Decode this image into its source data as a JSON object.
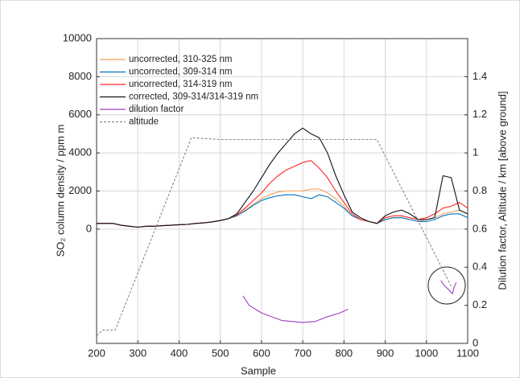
{
  "chart_data": {
    "type": "line",
    "x_label": "Sample",
    "y_label": "SO₂ column density / ppm m",
    "y2_label": "Dilution factor, Altitude / km [above ground]",
    "xlim": [
      200,
      1100
    ],
    "xticks": [
      200,
      300,
      400,
      500,
      600,
      700,
      800,
      900,
      1000,
      1100
    ],
    "ylim": [
      -6000,
      10000
    ],
    "yticks": [
      0,
      2000,
      4000,
      6000,
      8000,
      10000
    ],
    "y2lim": [
      0,
      1.6
    ],
    "y2ticks": [
      0,
      0.2,
      0.4,
      0.6,
      0.8,
      1,
      1.2,
      1.4
    ],
    "grid": true,
    "legend": "upper left",
    "series": [
      {
        "name": "uncorrected, 310-325 nm",
        "color": "#f5a05a",
        "x": [
          200,
          220,
          240,
          260,
          280,
          300,
          320,
          340,
          360,
          380,
          400,
          420,
          440,
          460,
          480,
          500,
          520,
          540,
          560,
          580,
          600,
          620,
          640,
          660,
          680,
          700,
          720,
          740,
          760,
          780,
          800,
          820,
          840,
          860,
          880,
          900,
          920,
          940,
          960,
          980,
          1000,
          1020,
          1040,
          1060,
          1080,
          1100
        ],
        "values": [
          300,
          300,
          300,
          200,
          150,
          100,
          150,
          150,
          180,
          200,
          230,
          250,
          300,
          330,
          380,
          450,
          550,
          700,
          1000,
          1300,
          1600,
          1800,
          1950,
          2000,
          2000,
          2000,
          2100,
          2100,
          1900,
          1600,
          1200,
          700,
          500,
          400,
          300,
          500,
          600,
          600,
          500,
          400,
          500,
          600,
          800,
          900,
          1000,
          800
        ]
      },
      {
        "name": "uncorrected, 309-314 nm",
        "color": "#0072bd",
        "x": [
          200,
          220,
          240,
          260,
          280,
          300,
          320,
          340,
          360,
          380,
          400,
          420,
          440,
          460,
          480,
          500,
          520,
          540,
          560,
          580,
          600,
          620,
          640,
          660,
          680,
          700,
          720,
          740,
          760,
          780,
          800,
          820,
          840,
          860,
          880,
          900,
          920,
          940,
          960,
          980,
          1000,
          1020,
          1040,
          1060,
          1080,
          1100
        ],
        "values": [
          300,
          300,
          300,
          200,
          150,
          100,
          150,
          150,
          180,
          200,
          230,
          250,
          300,
          330,
          380,
          450,
          550,
          700,
          950,
          1250,
          1500,
          1650,
          1750,
          1800,
          1800,
          1700,
          1600,
          1800,
          1700,
          1400,
          1100,
          700,
          500,
          400,
          300,
          500,
          600,
          600,
          500,
          400,
          400,
          500,
          700,
          800,
          800,
          600
        ]
      },
      {
        "name": "uncorrected, 314-319 nm",
        "color": "#ff2626",
        "x": [
          200,
          220,
          240,
          260,
          280,
          300,
          320,
          340,
          360,
          380,
          400,
          420,
          440,
          460,
          480,
          500,
          520,
          540,
          560,
          580,
          600,
          620,
          640,
          660,
          680,
          700,
          720,
          740,
          760,
          780,
          800,
          820,
          840,
          860,
          880,
          900,
          920,
          940,
          960,
          980,
          1000,
          1020,
          1040,
          1060,
          1080,
          1100
        ],
        "values": [
          300,
          300,
          300,
          200,
          150,
          100,
          150,
          150,
          180,
          200,
          230,
          250,
          300,
          330,
          380,
          450,
          550,
          750,
          1100,
          1500,
          1900,
          2400,
          2800,
          3100,
          3300,
          3500,
          3600,
          3200,
          2700,
          2000,
          1400,
          800,
          500,
          400,
          300,
          600,
          700,
          700,
          600,
          500,
          600,
          800,
          1100,
          1200,
          1400,
          1100
        ]
      },
      {
        "name": "corrected, 309-314/314-319 nm",
        "color": "#111111",
        "x": [
          200,
          220,
          240,
          260,
          280,
          300,
          320,
          340,
          360,
          380,
          400,
          420,
          440,
          460,
          480,
          500,
          520,
          540,
          560,
          580,
          600,
          620,
          640,
          660,
          680,
          700,
          720,
          740,
          760,
          780,
          800,
          820,
          840,
          860,
          880,
          900,
          920,
          940,
          960,
          980,
          1000,
          1020,
          1040,
          1060,
          1080,
          1100
        ],
        "values": [
          300,
          300,
          300,
          200,
          150,
          100,
          150,
          150,
          180,
          200,
          230,
          250,
          300,
          330,
          380,
          450,
          550,
          800,
          1400,
          2000,
          2700,
          3400,
          4000,
          4500,
          5000,
          5300,
          5000,
          4800,
          4000,
          2800,
          1800,
          900,
          600,
          400,
          300,
          700,
          900,
          1000,
          800,
          500,
          500,
          600,
          2800,
          2700,
          1000,
          800
        ]
      },
      {
        "name": "dilution factor",
        "color": "#9b3fbf",
        "axis": "y2",
        "x": [
          555,
          570,
          600,
          650,
          700,
          730,
          760,
          790,
          810,
          null,
          1035,
          1045,
          1055,
          1063,
          1068,
          1072
        ],
        "values": [
          0.25,
          0.2,
          0.16,
          0.12,
          0.11,
          0.115,
          0.14,
          0.16,
          0.18,
          null,
          0.33,
          0.3,
          0.28,
          0.26,
          0.3,
          0.32
        ]
      },
      {
        "name": "altitude",
        "color": "#888888",
        "axis": "y2",
        "dashed": true,
        "x": [
          200,
          215,
          245,
          430,
          500,
          880,
          1060
        ],
        "values": [
          0.04,
          0.07,
          0.07,
          1.08,
          1.07,
          1.07,
          0.3
        ]
      }
    ]
  }
}
